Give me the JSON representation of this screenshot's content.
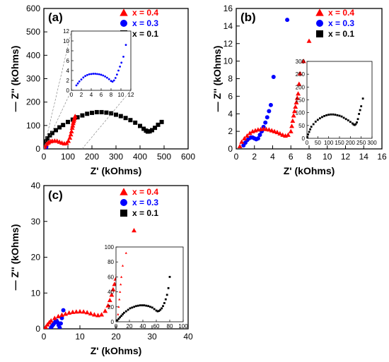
{
  "chart_data": [
    {
      "type": "scatter",
      "panel_label": "(a)",
      "xlabel": "Z' (kOhms)",
      "ylabel": "— Z'' (kOhms)",
      "xlim": [
        0,
        600
      ],
      "ylim": [
        0,
        600
      ],
      "xticks": [
        0,
        100,
        200,
        300,
        400,
        500,
        600
      ],
      "yticks": [
        0,
        100,
        200,
        300,
        400,
        500,
        600
      ],
      "legend_position": "top-right",
      "series": [
        {
          "name": "x = 0.4",
          "color": "#ff0000",
          "marker": "triangle",
          "x": [
            2,
            5,
            10,
            15,
            20,
            28,
            35,
            45,
            55,
            65,
            75,
            85,
            95,
            102,
            108,
            112,
            115,
            118,
            120,
            122,
            124,
            126,
            128,
            130
          ],
          "y": [
            3,
            12,
            20,
            25,
            28,
            32,
            34,
            35,
            34,
            30,
            26,
            23,
            25,
            34,
            48,
            62,
            75,
            90,
            100,
            110,
            118,
            125,
            132,
            140
          ]
        },
        {
          "name": "x = 0.3",
          "color": "#0000ff",
          "marker": "circle",
          "x": [
            1,
            2,
            3,
            4,
            5,
            6,
            7,
            8,
            9,
            10
          ],
          "y": [
            1,
            2,
            3,
            3.5,
            3.4,
            3,
            2.2,
            2.5,
            5,
            9
          ]
        },
        {
          "name": "x = 0.1",
          "color": "#000000",
          "marker": "square",
          "x": [
            3,
            8,
            15,
            25,
            35,
            50,
            65,
            80,
            100,
            120,
            140,
            160,
            180,
            200,
            220,
            240,
            260,
            280,
            300,
            320,
            340,
            360,
            380,
            400,
            415,
            425,
            432,
            440,
            450,
            462,
            475,
            490
          ],
          "y": [
            18,
            32,
            45,
            58,
            68,
            80,
            92,
            102,
            115,
            125,
            135,
            143,
            150,
            154,
            157,
            157,
            155,
            152,
            146,
            140,
            132,
            123,
            112,
            98,
            86,
            78,
            74,
            75,
            80,
            90,
            103,
            115
          ]
        }
      ],
      "inset": {
        "xlim": [
          0,
          12
        ],
        "ylim": [
          0,
          12
        ],
        "xticks": [
          0,
          2,
          4,
          6,
          8,
          10,
          12
        ],
        "yticks": [
          0,
          2,
          4,
          6,
          8,
          10,
          12
        ],
        "series": [
          {
            "color": "#0000ff",
            "marker": "circle",
            "x": [
              1,
              1.3,
              1.6,
              2,
              2.4,
              2.8,
              3.2,
              3.6,
              4,
              4.4,
              4.8,
              5.2,
              5.6,
              6,
              6.4,
              6.8,
              7.2,
              7.6,
              8,
              8.3,
              8.6,
              8.9,
              9.2,
              9.5,
              9.8,
              10.1,
              10.5,
              11
            ],
            "y": [
              1.0,
              1.4,
              1.8,
              2.2,
              2.6,
              2.9,
              3.1,
              3.25,
              3.3,
              3.35,
              3.35,
              3.3,
              3.25,
              3.15,
              3.0,
              2.8,
              2.55,
              2.25,
              1.9,
              1.75,
              2.0,
              2.5,
              3.2,
              4.0,
              4.8,
              5.6,
              6.8,
              9.2
            ]
          }
        ]
      }
    },
    {
      "type": "scatter",
      "panel_label": "(b)",
      "xlabel": "Z' (kOhms)",
      "ylabel": "— Z'' (kOhms)",
      "xlim": [
        0,
        16
      ],
      "ylim": [
        0,
        16
      ],
      "xticks": [
        0,
        2,
        4,
        6,
        8,
        10,
        12,
        14,
        16
      ],
      "yticks": [
        0,
        2,
        4,
        6,
        8,
        10,
        12,
        14,
        16
      ],
      "legend_position": "top-right",
      "series": [
        {
          "name": "x = 0.4",
          "color": "#ff0000",
          "marker": "triangle",
          "x": [
            0.4,
            0.6,
            0.9,
            1.2,
            1.5,
            1.8,
            2.1,
            2.4,
            2.7,
            3.0,
            3.3,
            3.6,
            3.9,
            4.2,
            4.5,
            4.8,
            5.1,
            5.4,
            5.7,
            6.0,
            6.1,
            6.2,
            6.3,
            6.4,
            6.5,
            6.6,
            6.7,
            6.8,
            6.9,
            7.0,
            7.4,
            8.0
          ],
          "y": [
            0.3,
            0.8,
            1.2,
            1.5,
            1.8,
            2.0,
            2.1,
            2.2,
            2.25,
            2.3,
            2.25,
            2.2,
            2.1,
            2.0,
            1.9,
            1.75,
            1.6,
            1.5,
            1.6,
            2.0,
            2.6,
            3.2,
            3.8,
            4.3,
            4.8,
            5.3,
            5.8,
            6.3,
            7.4,
            8.6,
            10.0,
            12.3
          ]
        },
        {
          "name": "x = 0.3",
          "color": "#0000ff",
          "marker": "circle",
          "x": [
            0.8,
            1.0,
            1.2,
            1.4,
            1.6,
            1.8,
            2.0,
            2.2,
            2.4,
            2.6,
            2.8,
            3.0,
            3.2,
            3.4,
            3.6,
            3.8,
            4.1,
            5.6
          ],
          "y": [
            0.4,
            0.7,
            1.0,
            1.2,
            1.3,
            1.3,
            1.2,
            1.1,
            1.2,
            1.6,
            2.0,
            2.5,
            3.0,
            3.6,
            4.3,
            5.0,
            8.2,
            14.7
          ]
        },
        {
          "name": "x = 0.1",
          "color": "#000000",
          "marker": "square",
          "x": [],
          "y": []
        }
      ],
      "inset": {
        "xlim": [
          0,
          300
        ],
        "ylim": [
          0,
          300
        ],
        "xticks": [
          0,
          50,
          100,
          150,
          200,
          250,
          300
        ],
        "yticks": [
          0,
          50,
          100,
          150,
          200,
          250,
          300
        ],
        "series": [
          {
            "color": "#000000",
            "marker": "square",
            "x": [
              2,
              5,
              10,
              15,
              20,
              30,
              40,
              50,
              60,
              70,
              80,
              90,
              100,
              110,
              120,
              130,
              140,
              150,
              160,
              170,
              180,
              190,
              200,
              210,
              215,
              220,
              225,
              230,
              235,
              240,
              245,
              250,
              258
            ],
            "y": [
              5,
              15,
              25,
              35,
              45,
              55,
              65,
              72,
              78,
              83,
              87,
              90,
              92,
              93,
              93,
              92,
              90,
              88,
              85,
              80,
              75,
              70,
              64,
              58,
              54,
              52,
              55,
              62,
              75,
              95,
              110,
              125,
              155
            ]
          }
        ]
      }
    },
    {
      "type": "scatter",
      "panel_label": "(c)",
      "xlabel": "Z' (kOhms)",
      "ylabel": "— Z'' (kOhms)",
      "xlim": [
        0,
        40
      ],
      "ylim": [
        0,
        40
      ],
      "xticks": [
        0,
        10,
        20,
        30,
        40
      ],
      "yticks": [
        0,
        10,
        20,
        30,
        40
      ],
      "legend_position": "top-right",
      "series": [
        {
          "name": "x = 0.4",
          "color": "#ff0000",
          "marker": "triangle",
          "x": [
            0.5,
            1,
            1.5,
            2,
            3,
            4,
            5,
            6,
            7,
            8,
            9,
            10,
            11,
            12,
            13,
            14,
            15,
            16,
            17,
            17.8,
            18.3,
            18.8,
            19.2,
            19.6,
            20,
            20.5,
            21,
            21.5,
            22,
            22.5,
            25
          ],
          "y": [
            0.5,
            1.2,
            1.8,
            2.3,
            3.0,
            3.5,
            3.9,
            4.2,
            4.5,
            4.7,
            4.8,
            4.85,
            4.8,
            4.6,
            4.3,
            4.0,
            3.8,
            4.0,
            5.0,
            6.5,
            8.0,
            9.5,
            11.0,
            12.5,
            14.0,
            15.5,
            17.0,
            18.5,
            20.0,
            22.0,
            27.5
          ]
        },
        {
          "name": "x = 0.3",
          "color": "#0000ff",
          "marker": "circle",
          "x": [
            2.0,
            2.3,
            2.6,
            2.9,
            3.2,
            3.5,
            3.8,
            4.1,
            4.4,
            4.7,
            5.0,
            5.4
          ],
          "y": [
            0.3,
            0.8,
            1.2,
            1.6,
            2.0,
            2.3,
            1.8,
            1.0,
            0.3,
            1.5,
            3.0,
            5.2
          ]
        },
        {
          "name": "x = 0.1",
          "color": "#000000",
          "marker": "square",
          "x": [],
          "y": []
        }
      ],
      "inset": {
        "xlim": [
          0,
          100
        ],
        "ylim": [
          0,
          100
        ],
        "xticks": [
          0,
          20,
          40,
          60,
          80,
          100
        ],
        "yticks": [
          0,
          20,
          40,
          60,
          80,
          100
        ],
        "series": [
          {
            "color": "#000000",
            "marker": "square",
            "x": [
              2,
              4,
              6,
              8,
              10,
              12,
              15,
              18,
              21,
              24,
              27,
              30,
              33,
              36,
              39,
              42,
              45,
              48,
              51,
              54,
              57,
              60,
              62,
              64,
              66,
              68,
              70,
              72,
              74,
              76,
              78,
              80
            ],
            "y": [
              2,
              4,
              6,
              8,
              10,
              12,
              14,
              16,
              18,
              19,
              20,
              21,
              21.5,
              22,
              22,
              22,
              21.5,
              21,
              20,
              19,
              17,
              15,
              14,
              14.5,
              16,
              18,
              21,
              25,
              30,
              36,
              45,
              60
            ]
          },
          {
            "color": "#ff0000",
            "marker": "triangle",
            "x": [
              3,
              4,
              5,
              6,
              7,
              8,
              10,
              15
            ],
            "y": [
              10,
              20,
              30,
              40,
              50,
              60,
              75,
              92
            ]
          }
        ]
      }
    }
  ]
}
